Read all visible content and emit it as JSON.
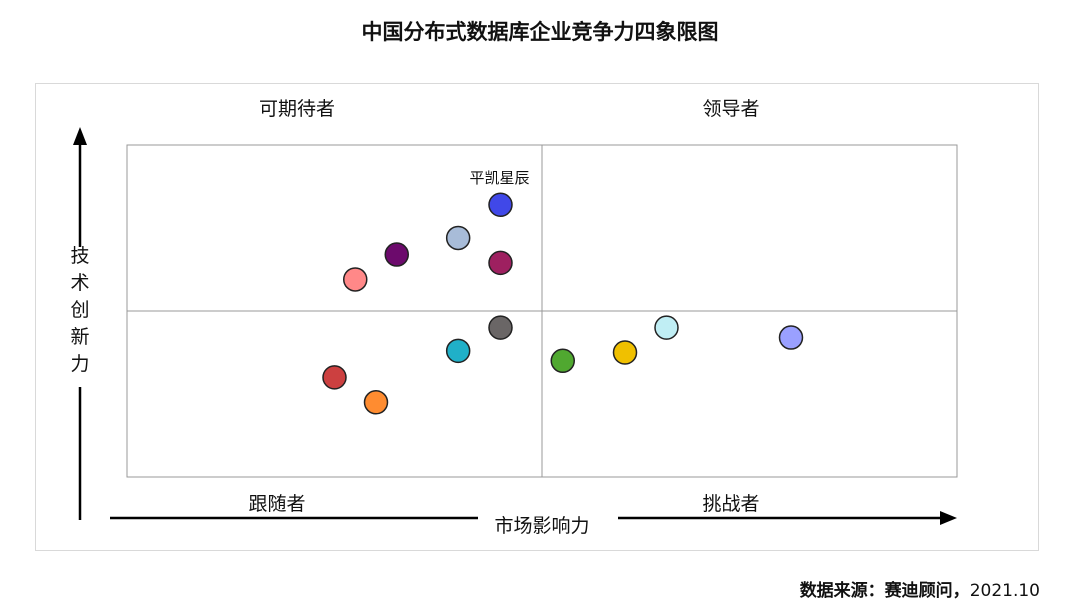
{
  "title": "中国分布式数据库企业竞争力四象限图",
  "source_label": "数据来源：赛迪顾问，",
  "source_date": "2021.10",
  "chart_data": {
    "type": "scatter",
    "title": "中国分布式数据库企业竞争力四象限图",
    "xlabel": "市场影响力",
    "ylabel": "技术创新力",
    "quadrants": {
      "top_left": "可期待者",
      "top_right": "领导者",
      "bottom_left": "跟随者",
      "bottom_right": "挑战者"
    },
    "xlim": [
      0,
      10
    ],
    "ylim": [
      0,
      10
    ],
    "divider": {
      "x": 5,
      "y": 5
    },
    "grid": false,
    "points": [
      {
        "label": "平凯星辰",
        "x": 4.5,
        "y": 8.2,
        "color": "#4048e8"
      },
      {
        "label": "",
        "x": 3.99,
        "y": 7.2,
        "color": "#a8bcd8"
      },
      {
        "label": "",
        "x": 4.5,
        "y": 6.45,
        "color": "#9e2060"
      },
      {
        "label": "",
        "x": 3.25,
        "y": 6.7,
        "color": "#6c0a6c"
      },
      {
        "label": "",
        "x": 2.75,
        "y": 5.95,
        "color": "#ff8888"
      },
      {
        "label": "",
        "x": 4.5,
        "y": 4.5,
        "color": "#6a6666"
      },
      {
        "label": "",
        "x": 3.99,
        "y": 3.8,
        "color": "#20b0c8"
      },
      {
        "label": "",
        "x": 2.5,
        "y": 3.0,
        "color": "#cc4040"
      },
      {
        "label": "",
        "x": 3.0,
        "y": 2.25,
        "color": "#ff8c30"
      },
      {
        "label": "",
        "x": 5.25,
        "y": 3.5,
        "color": "#50a830"
      },
      {
        "label": "",
        "x": 6.0,
        "y": 3.75,
        "color": "#f0c000"
      },
      {
        "label": "",
        "x": 6.5,
        "y": 4.5,
        "color": "#c0eef4"
      },
      {
        "label": "",
        "x": 8.0,
        "y": 4.2,
        "color": "#9aa0ff"
      }
    ]
  }
}
